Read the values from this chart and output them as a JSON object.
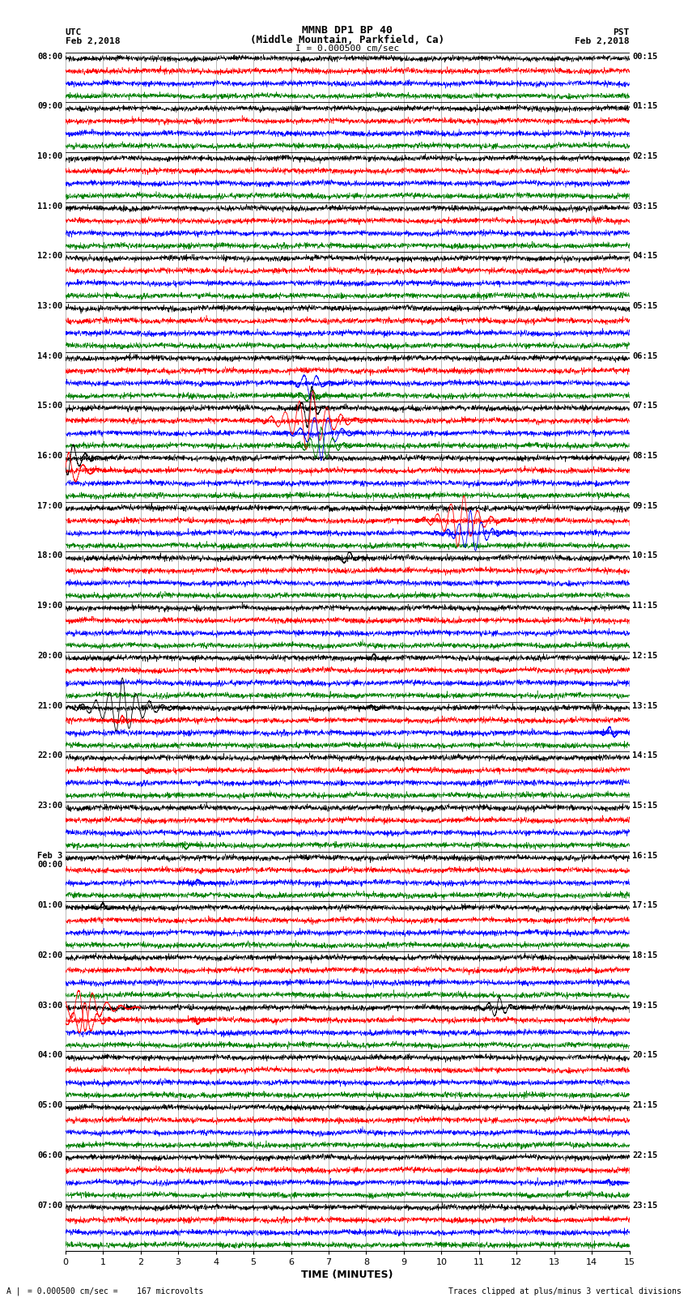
{
  "title_line1": "MMNB DP1 BP 40",
  "title_line2": "(Middle Mountain, Parkfield, Ca)",
  "scale_text": "I = 0.000500 cm/sec",
  "xlabel": "TIME (MINUTES)",
  "footer_left": "= 0.000500 cm/sec =    167 microvolts",
  "footer_right": "Traces clipped at plus/minus 3 vertical divisions",
  "colors": [
    "black",
    "red",
    "blue",
    "green"
  ],
  "background_color": "white",
  "fig_width": 8.5,
  "fig_height": 16.13,
  "num_rows": 24,
  "traces_per_row": 4,
  "left_time_labels": [
    "08:00",
    "09:00",
    "10:00",
    "11:00",
    "12:00",
    "13:00",
    "14:00",
    "15:00",
    "16:00",
    "17:00",
    "18:00",
    "19:00",
    "20:00",
    "21:00",
    "22:00",
    "23:00",
    "Feb 3\n00:00",
    "01:00",
    "02:00",
    "03:00",
    "04:00",
    "05:00",
    "06:00",
    "07:00"
  ],
  "right_time_labels": [
    "00:15",
    "01:15",
    "02:15",
    "03:15",
    "04:15",
    "05:15",
    "06:15",
    "07:15",
    "08:15",
    "09:15",
    "10:15",
    "11:15",
    "12:15",
    "13:15",
    "14:15",
    "15:15",
    "16:15",
    "17:15",
    "18:15",
    "19:15",
    "20:15",
    "21:15",
    "22:15",
    "23:15"
  ]
}
